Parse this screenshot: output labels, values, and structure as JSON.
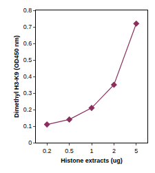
{
  "chart_data": {
    "type": "line",
    "x_label": "Histone extracts (ug)",
    "y_label": "Dimethyl H3-K9 (OD450 nm)",
    "categories": [
      "0.2",
      "0.5",
      "1",
      "2",
      "5"
    ],
    "values": [
      0.11,
      0.14,
      0.21,
      0.35,
      0.72
    ],
    "color": "#8b2f5f",
    "marker": "diamond",
    "ylim": [
      0,
      0.8
    ],
    "yticks": [
      0,
      0.1,
      0.2,
      0.3,
      0.4,
      0.5,
      0.6,
      0.7,
      0.8
    ],
    "grid": false
  }
}
